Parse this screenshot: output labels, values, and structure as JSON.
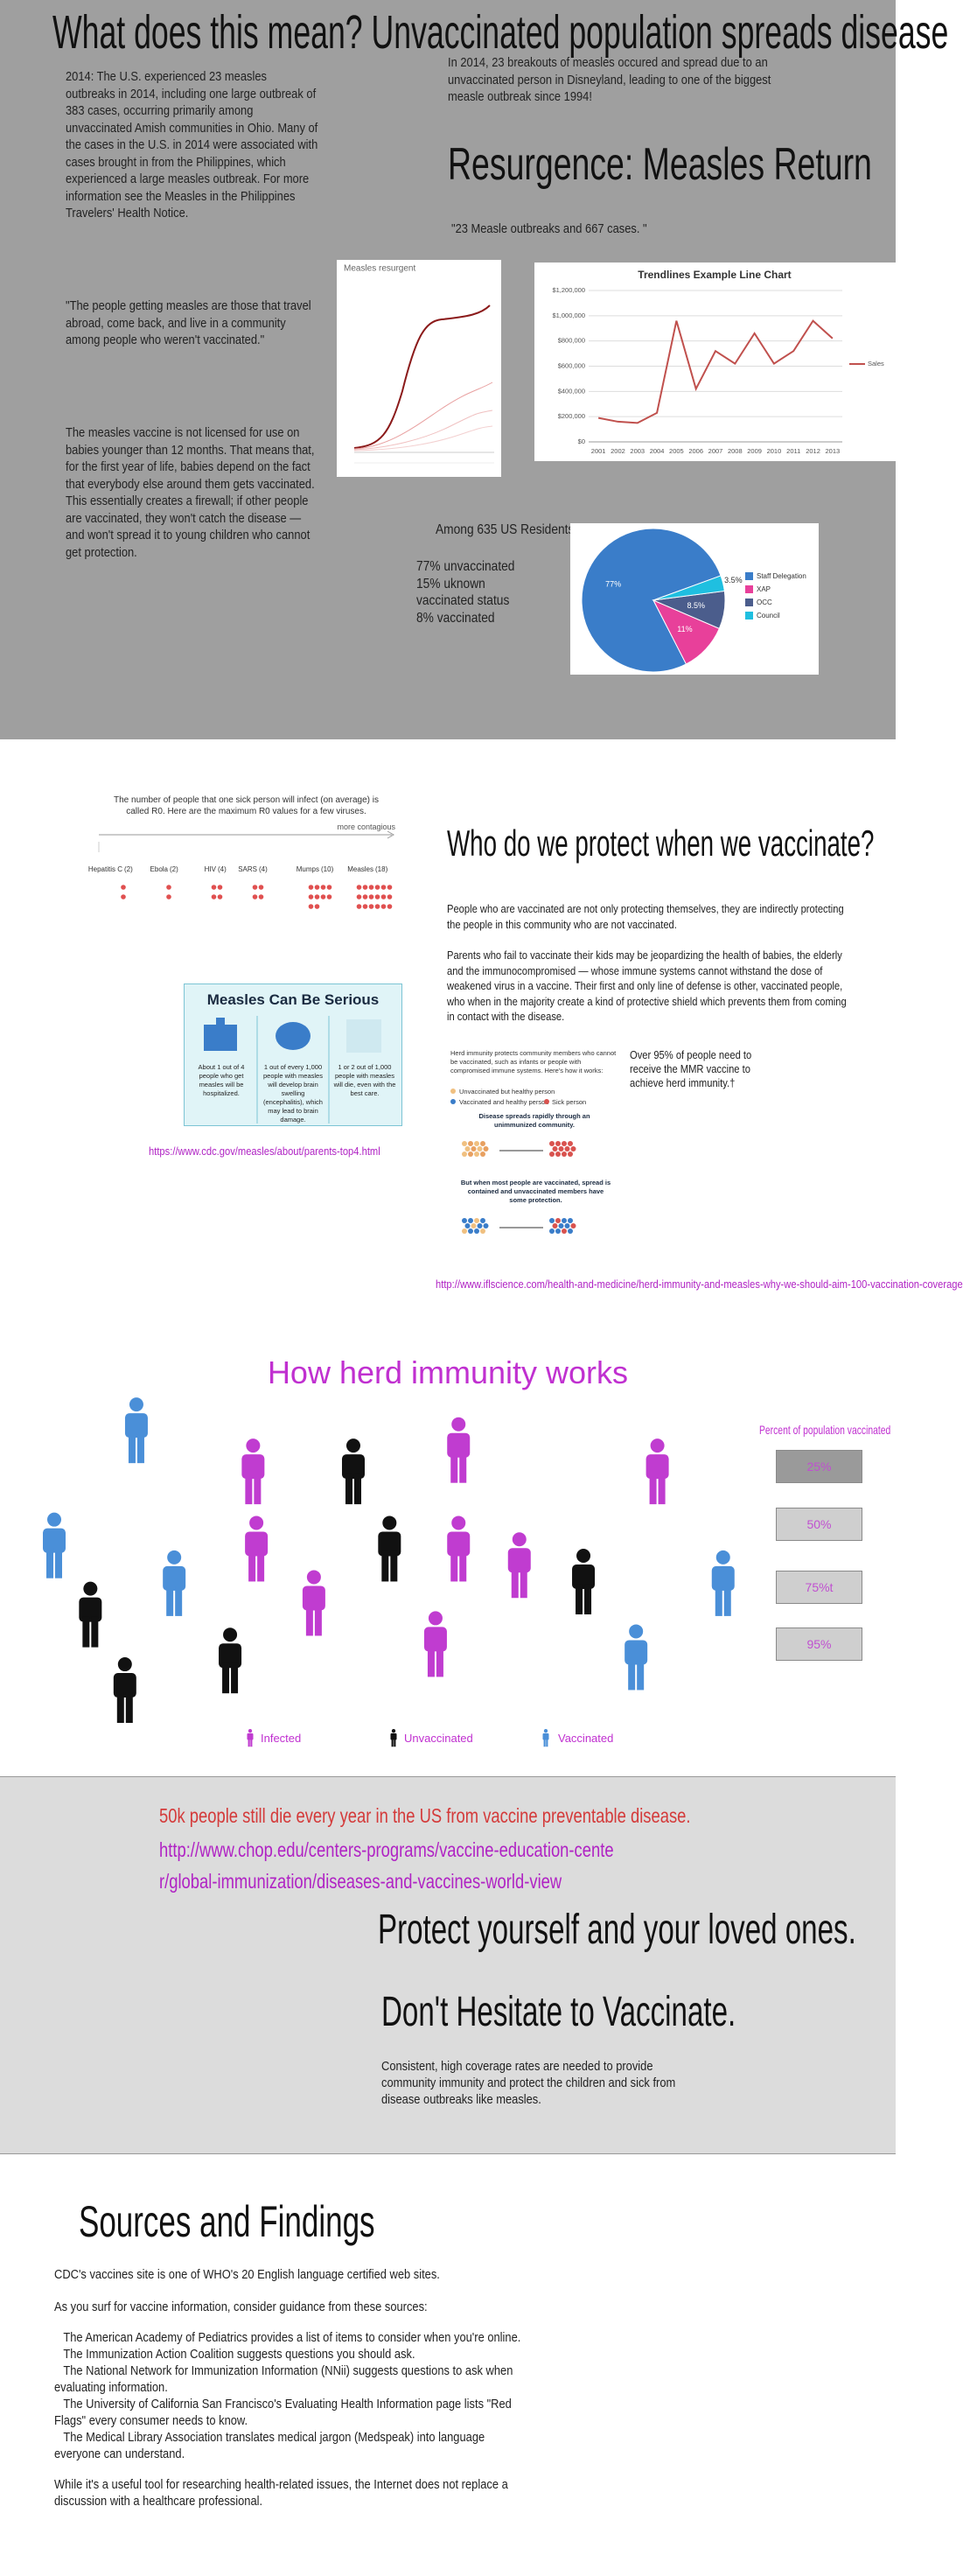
{
  "header": {
    "title": "What does this mean? Unvaccinated population spreads disease"
  },
  "intro": {
    "paragraphs": [
      "2014: The U.S. experienced 23 measles outbreaks in 2014, including one large outbreak of 383 cases, occurring primarily among unvaccinated Amish communities in Ohio. Many of the cases in the U.S. in 2014 were associated with cases brought in from the Philippines, which experienced a large measles outbreak. For more information see the Measles in the Philippines Travelers' Health Notice.",
      "\"The people getting measles are those that travel abroad, come back, and live in a community among people who weren't vaccinated.\"",
      "The measles vaccine is not licensed for use on babies younger than 12 months. That means that, for the first year of life, babies depend on the fact that everybody else around them gets vaccinated. This essentially creates a firewall; if other people are vaccinated, they won't catch the disease — and won't spread it to young children who cannot get protection."
    ],
    "right_text": "In 2014, 23 breakouts of measles occured and spread due to an unvaccinated person in Disneyland, leading to one of the biggest measle outbreak since 1994!",
    "heading": "Resurgence: Measles Return",
    "quote": "\"23 Measle outbreaks and 667 cases. \""
  },
  "measles_chart": {
    "title": "Measles resurgent"
  },
  "trend_chart": {
    "type": "line",
    "title": "Trendlines Example Line Chart",
    "categories": [
      "2001",
      "2002",
      "2003",
      "2004",
      "2005",
      "2006",
      "2007",
      "2008",
      "2009",
      "2010",
      "2011",
      "2012",
      "2013"
    ],
    "series": [
      {
        "name": "Sales",
        "color": "#c0504d",
        "values": [
          190000,
          160000,
          150000,
          230000,
          960000,
          420000,
          720000,
          620000,
          860000,
          620000,
          720000,
          960000,
          820000
        ]
      }
    ],
    "ylim": [
      0,
      1200000
    ],
    "yticks": [
      {
        "value": 0,
        "label": "$0"
      },
      {
        "value": 200000,
        "label": "$200,000"
      },
      {
        "value": 400000,
        "label": "$400,000"
      },
      {
        "value": 600000,
        "label": "$600,000"
      },
      {
        "value": 800000,
        "label": "$800,000"
      },
      {
        "value": 1000000,
        "label": "$1,000,000"
      },
      {
        "value": 1200000,
        "label": "$1,200,000"
      }
    ],
    "grid": true
  },
  "residents": {
    "title": "Among 635 US Residents",
    "lines": [
      "77% unvaccinated",
      "15% uknown",
      "vaccinated status",
      "8% vaccinated"
    ]
  },
  "pie_chart": {
    "type": "pie",
    "categories": [
      "Staff Delegation",
      "XAP",
      "OCC",
      "Council"
    ],
    "values": [
      77,
      11,
      8.5,
      3.5
    ],
    "value_labels": [
      "77%",
      "11%",
      "8.5%",
      "3.5%"
    ],
    "colors": [
      "#3a7dc9",
      "#e8409a",
      "#4b5d8c",
      "#1fbfe0"
    ]
  },
  "r0": {
    "intro": "The number of people that one sick person will infect (on average) is called R0. Here are the maximum R0 values for a few viruses.",
    "more": "more contagious",
    "names": [
      "Hepatitis C",
      "Ebola",
      "HIV",
      "SARS",
      "Mumps",
      "Measles"
    ],
    "values": [
      2,
      2,
      4,
      4,
      10,
      18
    ],
    "value_labels": [
      "(2)",
      "(2)",
      "(4)",
      "(4)",
      "(10)",
      "(18)"
    ]
  },
  "serious": {
    "title": "Measles Can Be Serious",
    "items": [
      "About 1 out of 4 people who get measles will be hospitalized.",
      "1 out of every 1,000 people with measles will develop brain swelling (encephalitis), which may lead to brain damage.",
      "1 or 2 out of 1,000 people with measles will die, even with the best care."
    ]
  },
  "protect": {
    "heading": "Who do we protect when we vaccinate?",
    "paragraphs": [
      "People who are vaccinated are not only protecting themselves, they are indirectly protecting the people in this community who are not vaccinated.",
      "Parents who fail to vaccinate their kids may be jeopardizing the health of  babies,  the elderly and the immunocompromised — whose immune systems cannot withstand the dose of weakened virus in a vaccine. Their first and only line of defense is other, vaccinated people, who when in the majority create a kind of protective shield which prevents them from coming in contact with the disease."
    ],
    "over": "Over 95% of people need to receive the MMR vaccine to achieve herd immunity.†",
    "url_cdc": "https://www.cdc.gov/measles/about/parents-top4.html",
    "url_ifl": "http://www.iflscience.com/health-and-medicine/herd-immunity-and-measles-why-we-should-aim-100-vaccination-coverage"
  },
  "herd_image": {
    "intro": "Herd immunity protects community members who cannot be vaccinated, such as infants or people with compromised immune systems. Here's how it works:",
    "legend": [
      "Unvaccinated but healthy person",
      "Vaccinated and healthy person",
      "Sick person"
    ],
    "spread": "Disease spreads rapidly through an unimmunized community.",
    "contained": "But when most people are vaccinated, spread is contained and unvaccinated members have some protection."
  },
  "herd": {
    "title": "How herd immunity works",
    "percent_title": "Percent of population vaccinated",
    "buttons": [
      "25%",
      "50%",
      "75%t",
      "95%"
    ],
    "legend": [
      "Infected",
      "Unvaccinated",
      "Vaccinated"
    ]
  },
  "cta": {
    "stat": "50k people still die every year in the US from vaccine preventable disease.",
    "link": "http://www.chop.edu/centers-programs/vaccine-education-center/global-immunization/diseases-and-vaccines-world-view",
    "line1": "Protect yourself and your loved ones.",
    "line2": "Don't Hesitate to Vaccinate.",
    "text": "Consistent, high coverage rates are needed to provide community immunity and protect the children and sick from disease outbreaks like measles."
  },
  "sources": {
    "heading": "Sources and Findings",
    "line1": "CDC's vaccines site is one of WHO's 20 English language certified web sites.",
    "line2": "As you surf for vaccine information, consider guidance from these sources:",
    "items": [
      "The American Academy of Pediatrics provides a list of items to consider when you're online.",
      "The Immunization Action Coalition suggests questions you should ask.",
      "The National Network for Immunization Information (NNii) suggests questions to ask when evaluating information.",
      "The University of California San Francisco's Evaluating Health Information page lists \"Red Flags\" every consumer needs to know.",
      "The Medical Library Association translates medical jargon (Medspeak) into language everyone can understand."
    ],
    "closing": "While it's a useful tool for researching health-related issues, the Internet does not replace a discussion with a healthcare professional."
  }
}
